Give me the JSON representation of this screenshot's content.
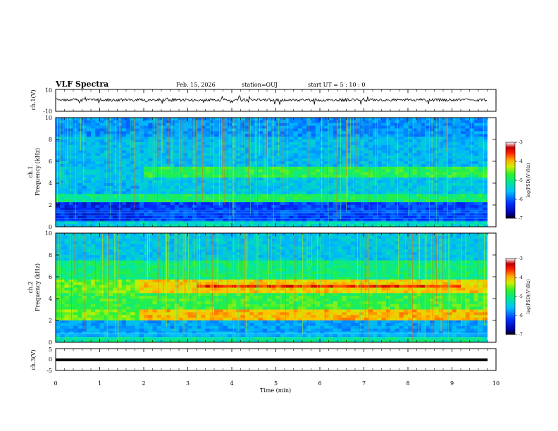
{
  "header": {
    "title": "VLF Spectra",
    "date": "Feb. 15, 2026",
    "station": "station=OUJ",
    "start_time": "start  UT =   5 : 10 : 0"
  },
  "chart_data": [
    {
      "type": "line",
      "panel": "ch1-waveform",
      "ylabel": "ch.1(V)",
      "ylim": [
        -10,
        10
      ],
      "yticks": [
        "10",
        "-10"
      ],
      "xlim": [
        0,
        10
      ]
    },
    {
      "type": "heatmap",
      "panel": "ch1-spectrogram",
      "ylabel": "ch.1\nFrequency (kHz)",
      "ylim": [
        0,
        10
      ],
      "yticks": [
        "10",
        "8",
        "6",
        "4",
        "2",
        "0"
      ],
      "xlim": [
        0,
        10
      ],
      "colorbar": {
        "label": "log(PSD)(V²/Hz)",
        "range": [
          -7,
          -3
        ],
        "ticks": [
          "-3",
          "-4",
          "-5",
          "-6",
          "-7"
        ]
      },
      "data_end_min": 9.8,
      "bands_kHz": [
        1.2,
        2.5,
        4.8
      ]
    },
    {
      "type": "heatmap",
      "panel": "ch2-spectrogram",
      "ylabel": "ch.2\nFrequency (kHz)",
      "ylim": [
        0,
        10
      ],
      "yticks": [
        "10",
        "8",
        "6",
        "4",
        "2",
        "0"
      ],
      "xlim": [
        0,
        10
      ],
      "colorbar": {
        "label": "log(PSD)(V²/Hz)",
        "range": [
          -7,
          -3
        ],
        "ticks": [
          "-3",
          "-4",
          "-5",
          "-6",
          "-7"
        ]
      },
      "data_end_min": 9.8,
      "bands_kHz": [
        2.5,
        5.2
      ]
    },
    {
      "type": "line",
      "panel": "ch3-waveform",
      "ylabel": "ch.3(V)",
      "ylim": [
        -5,
        5
      ],
      "yticks": [
        "5",
        "0",
        "-5"
      ],
      "xlim": [
        0,
        10
      ],
      "xticks": [
        "0",
        "1",
        "2",
        "3",
        "4",
        "5",
        "6",
        "7",
        "8",
        "9",
        "10"
      ],
      "xlabel": "Time (min)"
    }
  ],
  "colors": {
    "axis": "#000000",
    "colormap": [
      "#0000a0",
      "#0030ff",
      "#00b0ff",
      "#00e8c0",
      "#40f040",
      "#c8f000",
      "#ffd000",
      "#ff4000",
      "#d00000",
      "#ffffff"
    ]
  }
}
